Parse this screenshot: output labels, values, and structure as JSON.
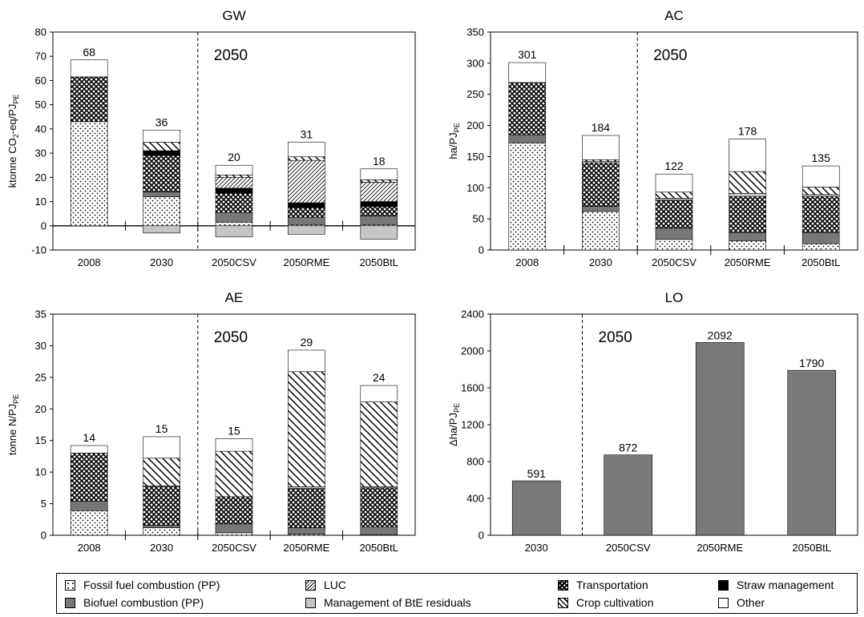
{
  "colors": {
    "biofuel": "#777777",
    "residuals": "#c6c6c6",
    "straw": "#000000",
    "other": "#ffffff",
    "lo_bar": "#7a7a7a"
  },
  "legend": [
    {
      "key": "fossil",
      "label": "Fossil fuel combustion (PP)"
    },
    {
      "key": "biofuel",
      "label": "Biofuel combustion (PP)"
    },
    {
      "key": "luc",
      "label": "LUC"
    },
    {
      "key": "residuals",
      "label": "Management of BtE residuals"
    },
    {
      "key": "transport",
      "label": "Transportation"
    },
    {
      "key": "crop",
      "label": "Crop cultivation"
    },
    {
      "key": "straw",
      "label": "Straw management"
    },
    {
      "key": "other",
      "label": "Other"
    }
  ],
  "chart_data": [
    {
      "id": "gw",
      "type": "bar",
      "stacked": true,
      "title": "GW",
      "ylabel": "ktonne CO2-eq/PJPE",
      "ylim": [
        -10,
        80
      ],
      "yticks": [
        -10,
        0,
        10,
        20,
        30,
        40,
        50,
        60,
        70,
        80
      ],
      "categories": [
        "2008",
        "2030",
        "2050CSV",
        "2050RME",
        "2050BtL"
      ],
      "period_label": "2050",
      "totals": [
        "68",
        "36",
        "20",
        "31",
        "18"
      ],
      "series": [
        {
          "key": "fossil",
          "values": [
            43,
            12,
            1.5,
            0.5,
            0.5
          ]
        },
        {
          "key": "biofuel",
          "values": [
            0,
            2,
            4,
            3,
            3.5
          ]
        },
        {
          "key": "transport",
          "values": [
            18.5,
            15,
            8,
            4,
            4
          ]
        },
        {
          "key": "straw",
          "values": [
            0,
            2,
            2,
            2,
            2
          ]
        },
        {
          "key": "luc",
          "values": [
            0,
            0,
            4.5,
            17.5,
            8
          ]
        },
        {
          "key": "crop",
          "values": [
            0,
            3.5,
            1,
            1.5,
            1
          ]
        },
        {
          "key": "other",
          "values": [
            7,
            5,
            4,
            6,
            4.5
          ]
        },
        {
          "key": "residuals",
          "values": [
            0,
            -3,
            -4.5,
            -3.5,
            -5.5
          ]
        }
      ]
    },
    {
      "id": "ac",
      "type": "bar",
      "stacked": true,
      "title": "AC",
      "ylabel": "ha/PJPE",
      "ylim": [
        0,
        350
      ],
      "yticks": [
        0,
        50,
        100,
        150,
        200,
        250,
        300,
        350
      ],
      "categories": [
        "2008",
        "2030",
        "2050CSV",
        "2050RME",
        "2050BtL"
      ],
      "period_label": "2050",
      "totals": [
        "301",
        "184",
        "122",
        "178",
        "135"
      ],
      "series": [
        {
          "key": "fossil",
          "values": [
            172,
            62,
            17,
            15,
            10
          ]
        },
        {
          "key": "biofuel",
          "values": [
            13,
            8,
            18,
            13,
            18
          ]
        },
        {
          "key": "transport",
          "values": [
            84,
            70,
            45,
            58,
            58
          ]
        },
        {
          "key": "residuals",
          "values": [
            0,
            2,
            3,
            5,
            3
          ]
        },
        {
          "key": "crop",
          "values": [
            0,
            3,
            10,
            35,
            12
          ]
        },
        {
          "key": "other",
          "values": [
            32,
            39,
            29,
            52,
            34
          ]
        }
      ]
    },
    {
      "id": "ae",
      "type": "bar",
      "stacked": true,
      "title": "AE",
      "ylabel": "tonne N/PJPE",
      "ylim": [
        0,
        35
      ],
      "yticks": [
        0,
        5,
        10,
        15,
        20,
        25,
        30,
        35
      ],
      "categories": [
        "2008",
        "2030",
        "2050CSV",
        "2050RME",
        "2050BtL"
      ],
      "period_label": "2050",
      "totals": [
        "14",
        "15",
        "15",
        "29",
        "24"
      ],
      "series": [
        {
          "key": "fossil",
          "values": [
            3.9,
            1.2,
            0.4,
            0.2,
            0.1
          ]
        },
        {
          "key": "biofuel",
          "values": [
            1.5,
            0.4,
            1.4,
            1,
            1.2
          ]
        },
        {
          "key": "transport",
          "values": [
            7.6,
            6.2,
            4.3,
            6.2,
            6.2
          ]
        },
        {
          "key": "residuals",
          "values": [
            0,
            0,
            0,
            0.3,
            0.2
          ]
        },
        {
          "key": "crop",
          "values": [
            0,
            4.4,
            7.2,
            18.2,
            13.4
          ]
        },
        {
          "key": "other",
          "values": [
            1.2,
            3.4,
            2,
            3.4,
            2.6
          ]
        }
      ]
    },
    {
      "id": "lo",
      "type": "bar",
      "stacked": false,
      "title": "LO",
      "ylabel": "Δha/PJPE",
      "ylim": [
        0,
        2400
      ],
      "yticks": [
        0,
        400,
        800,
        1200,
        1600,
        2000,
        2400
      ],
      "categories": [
        "2030",
        "2050CSV",
        "2050RME",
        "2050BtL"
      ],
      "period_label": "2050",
      "values": [
        591,
        872,
        2092,
        1790
      ],
      "totals": [
        "591",
        "872",
        "2092",
        "1790"
      ]
    }
  ]
}
